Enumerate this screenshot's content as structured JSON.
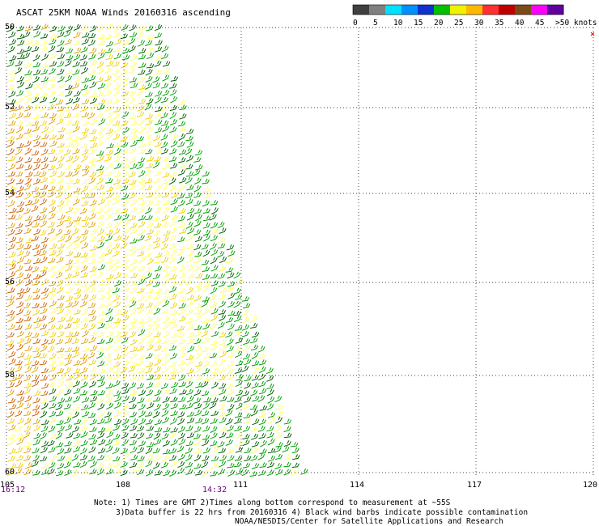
{
  "title": "ASCAT 25KM NOAA Winds 20160316 ascending",
  "legend": {
    "labels": [
      "0",
      "5",
      "10",
      "15",
      "20",
      "25",
      "30",
      "35",
      "40",
      "45",
      ">50 knots"
    ],
    "colors": [
      "#404040",
      "#808080",
      "#00e0ff",
      "#0090ff",
      "#1030d0",
      "#00c000",
      "#f0f000",
      "#ffb800",
      "#ff3030",
      "#c00000",
      "#7a4a1a",
      "#ff00ff",
      "#6000a0"
    ]
  },
  "axes": {
    "lat_labels": [
      "50",
      "52",
      "54",
      "56",
      "58",
      "60"
    ],
    "lon_labels": [
      "105",
      "108",
      "111",
      "114",
      "117",
      "120"
    ]
  },
  "times": [
    "16:12",
    "14:32"
  ],
  "notes": [
    "Note: 1) Times are GMT 2)Times along bottom correspond to measurement at ~55S",
    "3)Data buffer is 22 hrs from 20160316 4) Black wind barbs indicate possible contamination",
    "NOAA/NESDIS/Center for Satellite Applications and Research"
  ],
  "wind_colors": {
    "light": "#ffff60",
    "medium": "#f0d000",
    "strong": "#e0a000",
    "orange": "#d06000",
    "green": "#00a000",
    "darkgreen": "#006000"
  },
  "corner_mark_color": "#ff0000"
}
